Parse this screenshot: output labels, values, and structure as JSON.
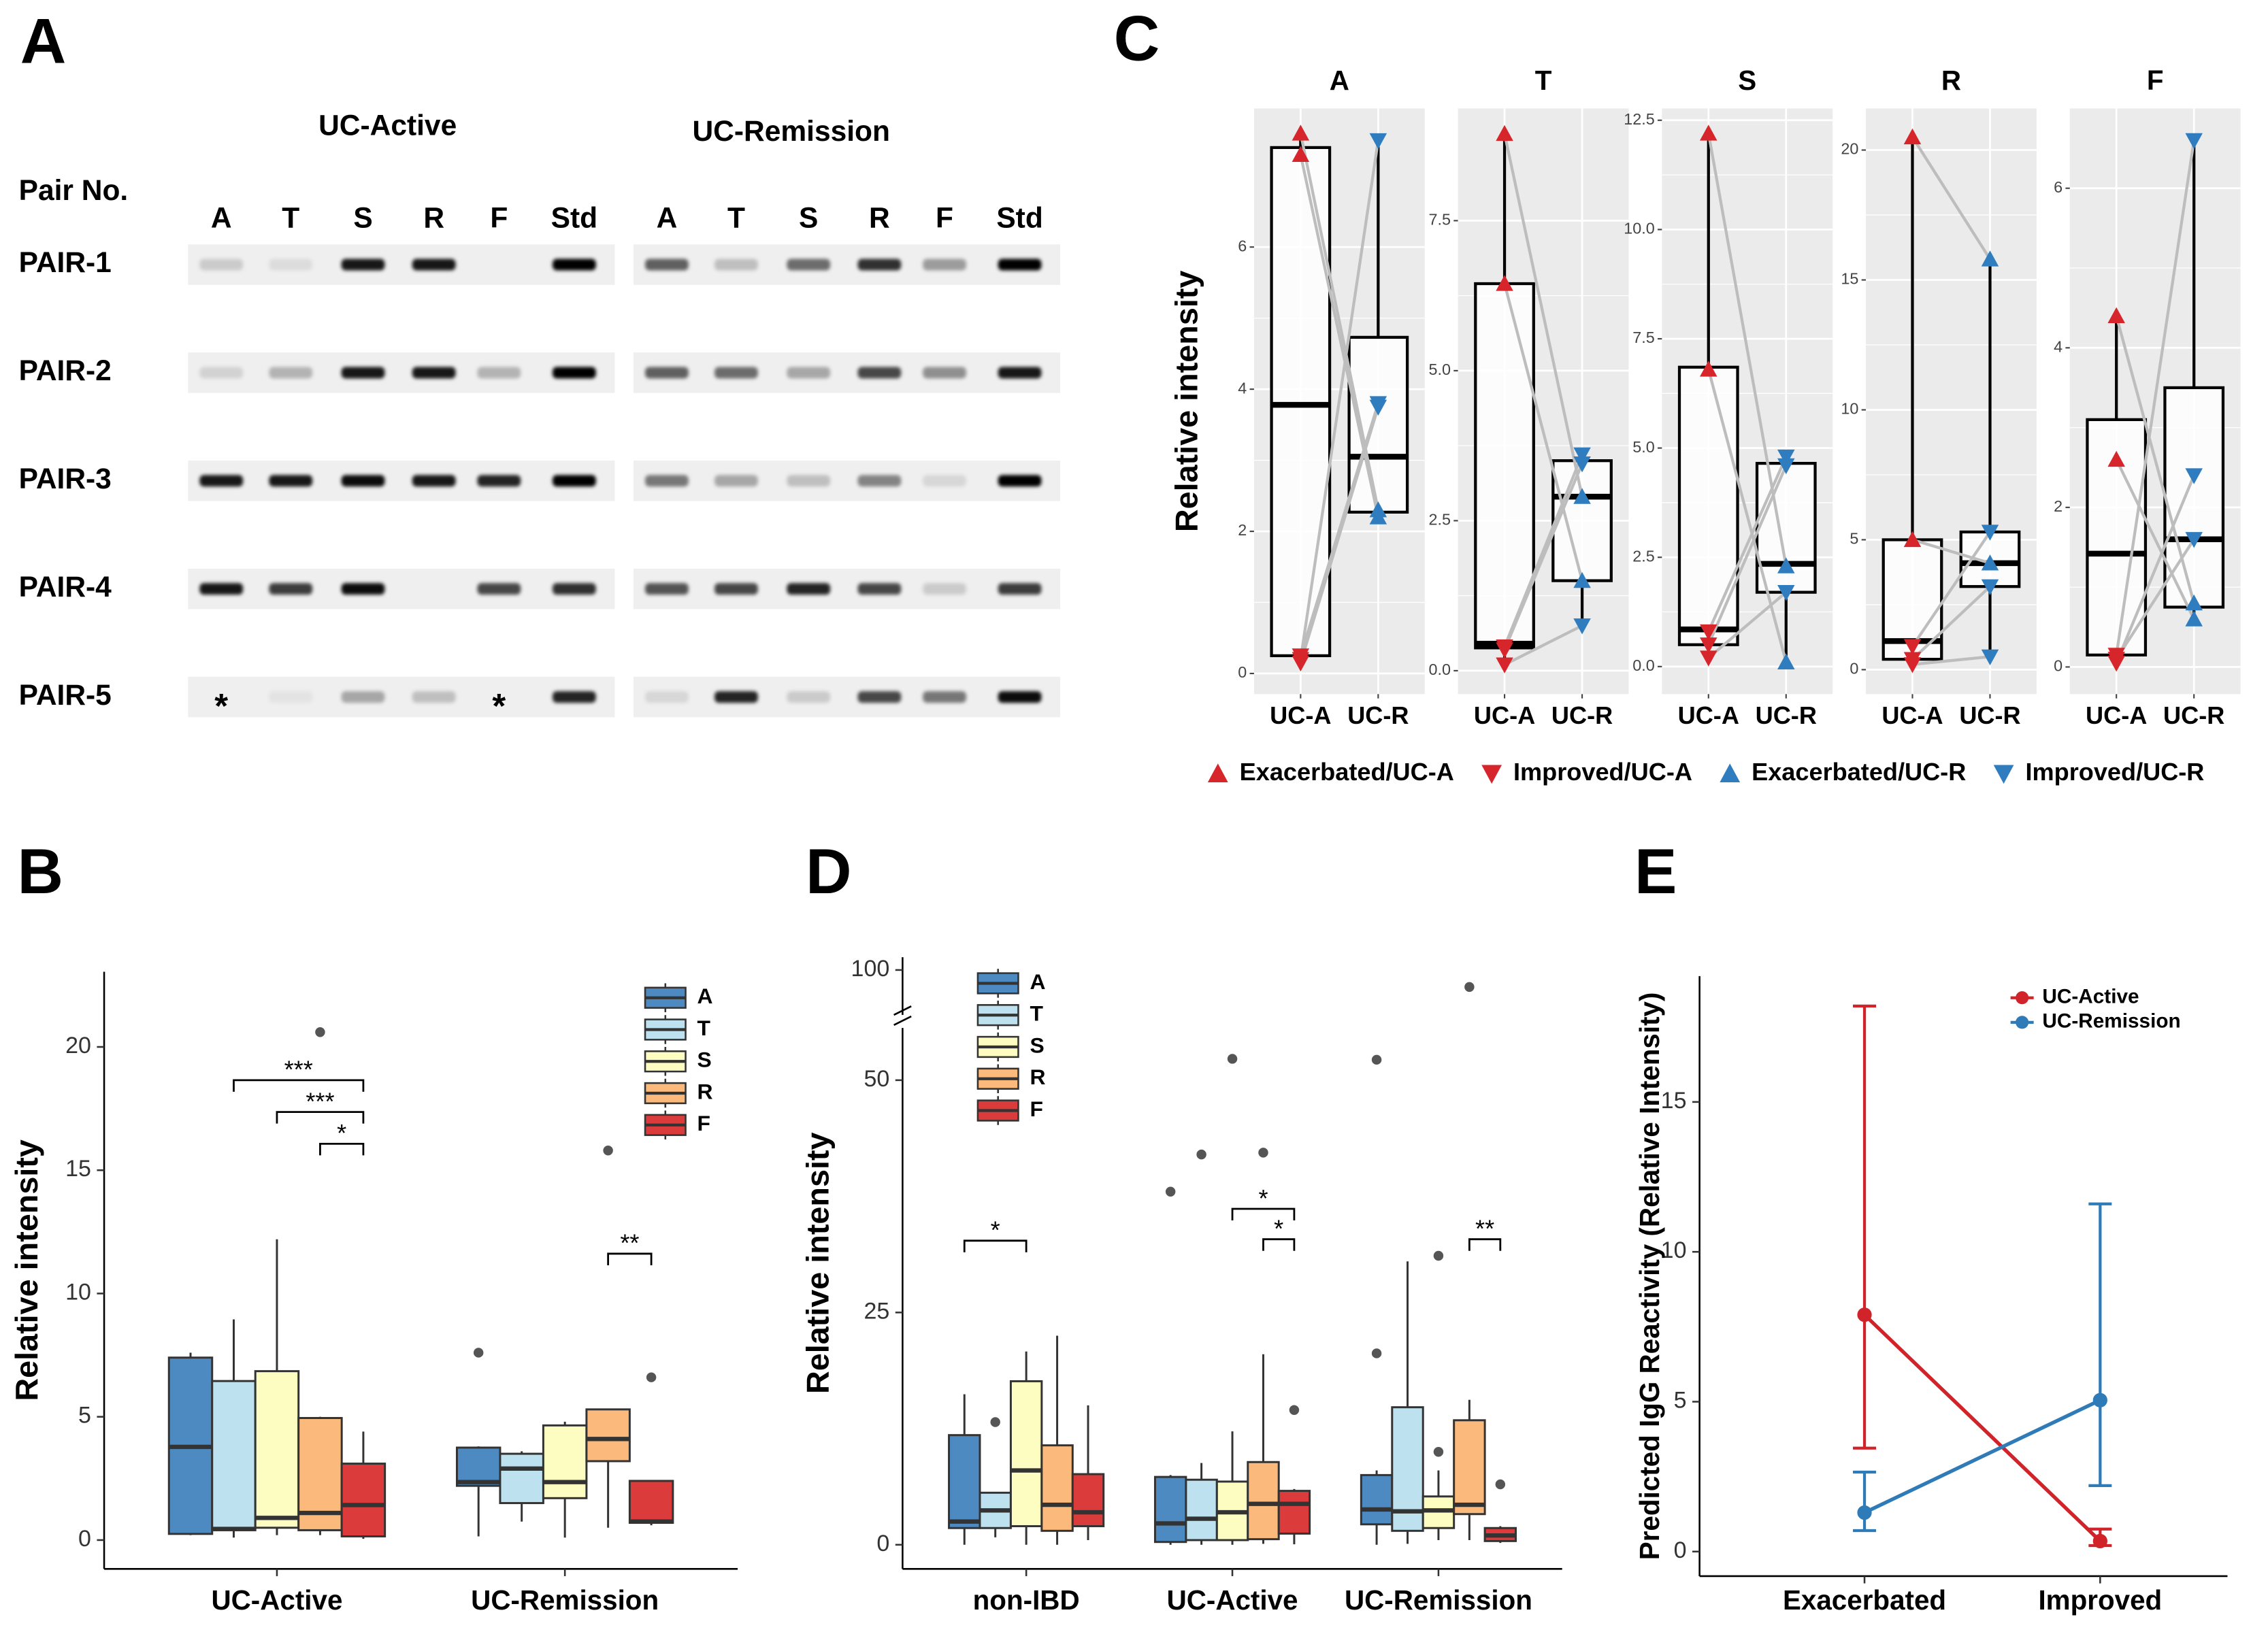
{
  "blot": {
    "panel": "A",
    "pair_label": "Pair No.",
    "groups": [
      "UC-Active",
      "UC-Remission"
    ],
    "lanes": [
      "A",
      "T",
      "S",
      "R",
      "F",
      "Std"
    ],
    "rows": [
      {
        "label": "PAIR-1",
        "intensity": [
          [
            0.15,
            0.08,
            0.9,
            0.9,
            0,
            1
          ],
          [
            0.6,
            0.2,
            0.55,
            0.8,
            0.35,
            1
          ]
        ]
      },
      {
        "label": "PAIR-2",
        "intensity": [
          [
            0.12,
            0.25,
            0.9,
            0.9,
            0.25,
            1
          ],
          [
            0.6,
            0.55,
            0.3,
            0.7,
            0.4,
            0.9
          ]
        ]
      },
      {
        "label": "PAIR-3",
        "intensity": [
          [
            0.9,
            0.9,
            0.95,
            0.9,
            0.85,
            1
          ],
          [
            0.5,
            0.3,
            0.2,
            0.45,
            0.1,
            1
          ]
        ]
      },
      {
        "label": "PAIR-4",
        "intensity": [
          [
            0.9,
            0.75,
            0.95,
            0,
            0.7,
            0.8
          ],
          [
            0.65,
            0.7,
            0.85,
            0.7,
            0.15,
            0.75
          ]
        ]
      },
      {
        "label": "PAIR-5",
        "intensity": [
          [
            0,
            0.05,
            0.3,
            0.2,
            0,
            0.85
          ],
          [
            0.1,
            0.85,
            0.15,
            0.7,
            0.5,
            0.95
          ]
        ]
      }
    ],
    "marks": [
      {
        "label": "*",
        "row": 4,
        "group": 0,
        "lane": 0
      },
      {
        "label": "*",
        "row": 4,
        "group": 0,
        "lane": 4
      }
    ]
  },
  "chart_data": [
    {
      "type": "box",
      "panel": "B",
      "ylabel": "Relative intensity",
      "categories": [
        "UC-Active",
        "UC-Remission"
      ],
      "series": [
        {
          "name": "A",
          "color": "#4d8ac2",
          "boxes": [
            [
              0.2,
              0.25,
              3.78,
              7.4,
              7.6
            ],
            [
              0.15,
              2.2,
              2.35,
              3.75,
              3.8
            ]
          ],
          "outliers": [
            [],
            [
              7.6
            ]
          ]
        },
        {
          "name": "T",
          "color": "#bde1ee",
          "boxes": [
            [
              0.1,
              0.4,
              0.45,
              6.45,
              8.95
            ],
            [
              0.75,
              1.5,
              2.9,
              3.5,
              3.6
            ]
          ],
          "outliers": [
            [],
            []
          ]
        },
        {
          "name": "S",
          "color": "#fefdc1",
          "boxes": [
            [
              0.2,
              0.5,
              0.9,
              6.85,
              12.2
            ],
            [
              0.1,
              1.7,
              2.35,
              4.65,
              4.8
            ]
          ],
          "outliers": [
            [],
            []
          ]
        },
        {
          "name": "R",
          "color": "#fbb97b",
          "boxes": [
            [
              0.2,
              0.4,
              1.1,
              4.95,
              5.0
            ],
            [
              0.5,
              3.2,
              4.1,
              5.3,
              5.3
            ]
          ],
          "outliers": [
            [
              20.6
            ],
            [
              15.8
            ]
          ]
        },
        {
          "name": "F",
          "color": "#dc3b3b",
          "boxes": [
            [
              0.05,
              0.15,
              1.42,
              3.1,
              4.4
            ],
            [
              0.6,
              0.7,
              0.75,
              2.4,
              2.4
            ]
          ],
          "outliers": [
            [],
            [
              6.6
            ]
          ]
        }
      ],
      "ylim": [
        -1.17,
        23.05
      ],
      "yticks": [
        0,
        5,
        10,
        15,
        20
      ],
      "legend": "top-right",
      "annotations": [
        {
          "label": "***",
          "category": 0,
          "from": 1,
          "to": 4
        },
        {
          "label": "***",
          "category": 0,
          "from": 2,
          "to": 4
        },
        {
          "label": "*",
          "category": 0,
          "from": 3,
          "to": 4
        },
        {
          "label": "**",
          "category": 1,
          "from": 3,
          "to": 4
        }
      ]
    },
    {
      "type": "facet-box",
      "panel": "C",
      "ylabel": "Relative intensity",
      "categories": [
        "UC-A",
        "UC-R"
      ],
      "series": [
        {
          "name": "Exacerbated/UC-A",
          "color": "#d7262b",
          "marker": "triangle-up"
        },
        {
          "name": "Improved/UC-A",
          "color": "#d7262b",
          "marker": "triangle-down"
        },
        {
          "name": "Exacerbated/UC-R",
          "color": "#2f7dbf",
          "marker": "triangle-up"
        },
        {
          "name": "Improved/UC-R",
          "color": "#2f7dbf",
          "marker": "triangle-down"
        }
      ],
      "facets": [
        {
          "title": "A",
          "ylim": [
            -0.29,
            7.95
          ],
          "yticks": [
            0,
            2,
            4,
            6
          ],
          "boxes": [
            [
              0.15,
              0.25,
              3.78,
              7.4,
              7.6
            ],
            [
              2.2,
              2.27,
              3.05,
              4.73,
              7.5
            ]
          ],
          "points": [
            [
              7.6,
              7.3,
              null,
              null,
              null
            ],
            [
              null,
              null,
              0.2,
              0.15,
              0.25
            ],
            [
              2.3,
              2.2,
              null,
              null,
              null
            ],
            [
              null,
              null,
              7.5,
              3.75,
              3.8
            ]
          ]
        },
        {
          "title": "T",
          "ylim": [
            -0.39,
            9.37
          ],
          "yticks": [
            {
              "value": 0,
              "label": "0.0"
            },
            2.5,
            {
              "value": 5,
              "label": "5.0"
            },
            7.5
          ],
          "boxes": [
            [
              0.1,
              0.38,
              0.45,
              6.45,
              8.95
            ],
            [
              0.75,
              1.5,
              2.9,
              3.5,
              3.6
            ]
          ],
          "points": [
            [
              8.95,
              6.45,
              null,
              null,
              null
            ],
            [
              null,
              null,
              0.4,
              0.35,
              0.1
            ],
            [
              2.9,
              1.5,
              null,
              null,
              null
            ],
            [
              null,
              null,
              3.6,
              3.45,
              0.75
            ]
          ]
        },
        {
          "title": "S",
          "ylim": [
            -0.63,
            12.77
          ],
          "yticks": [
            {
              "value": 0,
              "label": "0.0"
            },
            2.5,
            {
              "value": 5,
              "label": "5.0"
            },
            7.5,
            {
              "value": 10,
              "label": "10.0"
            },
            12.5
          ],
          "boxes": [
            [
              0.2,
              0.5,
              0.85,
              6.85,
              12.2
            ],
            [
              0.1,
              1.7,
              2.35,
              4.65,
              4.8
            ]
          ],
          "points": [
            [
              12.2,
              6.8,
              null,
              null,
              null
            ],
            [
              null,
              null,
              0.8,
              0.5,
              0.2
            ],
            [
              2.3,
              0.1,
              null,
              null,
              null
            ],
            [
              null,
              null,
              4.8,
              4.6,
              1.7
            ]
          ]
        },
        {
          "title": "R",
          "ylim": [
            -0.94,
            21.6
          ],
          "yticks": [
            0,
            5,
            10,
            15,
            20
          ],
          "boxes": [
            [
              0.2,
              0.4,
              1.1,
              5,
              20.5
            ],
            [
              0.5,
              3.2,
              4.1,
              5.3,
              15.8
            ]
          ],
          "points": [
            [
              20.5,
              5,
              null,
              null,
              null
            ],
            [
              null,
              null,
              0.9,
              0.4,
              0.2
            ],
            [
              15.8,
              4.1,
              null,
              null,
              null
            ],
            [
              null,
              null,
              5.3,
              3.2,
              0.5
            ]
          ]
        },
        {
          "title": "F",
          "ylim": [
            -0.34,
            7.0
          ],
          "yticks": [
            0,
            2,
            4,
            6
          ],
          "boxes": [
            [
              0.05,
              0.15,
              1.42,
              3.1,
              4.4
            ],
            [
              0.6,
              0.75,
              1.6,
              3.5,
              6.6
            ]
          ],
          "points": [
            [
              4.4,
              2.6,
              null,
              null,
              null
            ],
            [
              null,
              null,
              0.15,
              0.05,
              0.1
            ],
            [
              0.8,
              0.6,
              null,
              null,
              null
            ],
            [
              null,
              null,
              6.6,
              2.4,
              1.6
            ]
          ]
        }
      ],
      "legend": "bottom"
    },
    {
      "type": "box",
      "panel": "D",
      "ylabel": "Relative intensity",
      "categories": [
        "non-IBD",
        "UC-Active",
        "UC-Remission"
      ],
      "series": [
        {
          "name": "A",
          "color": "#4d8ac2",
          "boxes": [
            [
              0,
              1.8,
              2.5,
              11.8,
              16.2
            ],
            [
              0,
              0.3,
              2.3,
              7.3,
              7.5
            ],
            [
              0,
              2.2,
              3.8,
              7.5,
              8
            ]
          ],
          "outliers": [
            [],
            [
              38
            ],
            [
              20.6,
              52.2
            ]
          ]
        },
        {
          "name": "T",
          "color": "#bde1ee",
          "boxes": [
            [
              0.8,
              1.8,
              3.7,
              5.6,
              5.6
            ],
            [
              0,
              0.5,
              2.8,
              7.0,
              8.8
            ],
            [
              0.1,
              1.5,
              3.6,
              14.8,
              30.5
            ]
          ],
          "outliers": [
            [
              13.2
            ],
            [
              42
            ],
            []
          ]
        },
        {
          "name": "S",
          "color": "#fefdc1",
          "boxes": [
            [
              0,
              2,
              8,
              17.6,
              20.8
            ],
            [
              0,
              0.5,
              3.5,
              6.8,
              12.2
            ],
            [
              0.5,
              1.8,
              3.7,
              5.2,
              8
            ]
          ],
          "outliers": [
            [],
            [
              52.3
            ],
            [
              10,
              31.1
            ]
          ]
        },
        {
          "name": "R",
          "color": "#fbb97b",
          "boxes": [
            [
              0,
              1.5,
              4.3,
              10.7,
              22.5
            ],
            [
              0.1,
              0.6,
              4.4,
              8.9,
              20.5
            ],
            [
              0.5,
              3.3,
              4.3,
              13.4,
              15.6
            ]
          ],
          "outliers": [
            [],
            [
              42.2
            ],
            [
              88
            ]
          ]
        },
        {
          "name": "F",
          "color": "#dc3b3b",
          "boxes": [
            [
              0.5,
              2,
              3.5,
              7.6,
              15
            ],
            [
              0.05,
              1.2,
              4.4,
              5.8,
              6
            ],
            [
              0.2,
              0.4,
              1,
              1.8,
              2
            ]
          ],
          "outliers": [
            [],
            [
              14.5
            ],
            [
              6.5
            ]
          ]
        }
      ],
      "ylim": [
        -2.6,
        109
      ],
      "yticks": [
        0,
        25,
        50,
        100
      ],
      "axis_break": true,
      "legend": "top-left",
      "annotations": [
        {
          "label": "*",
          "category": 0,
          "from": 0,
          "to": 2
        },
        {
          "label": "*",
          "category": 1,
          "from": 2,
          "to": 4
        },
        {
          "label": "*",
          "category": 1,
          "from": 3,
          "to": 4
        },
        {
          "label": "**",
          "category": 2,
          "from": 3,
          "to": 4
        }
      ]
    },
    {
      "type": "line",
      "panel": "E",
      "ylabel": "Predicted IgG Reactivity (Relative Intensity)",
      "categories": [
        "Exacerbated",
        "Improved"
      ],
      "series": [
        {
          "name": "UC-Active",
          "color": "#d0232a",
          "values": [
            7.9,
            0.35
          ],
          "lower": [
            3.45,
            0.2
          ],
          "upper": [
            18.2,
            0.75
          ]
        },
        {
          "name": "UC-Remission",
          "color": "#2e7bb7",
          "values": [
            1.3,
            5.05
          ],
          "lower": [
            0.7,
            2.2
          ],
          "upper": [
            2.65,
            11.6
          ]
        }
      ],
      "ylim": [
        -0.82,
        19.2
      ],
      "yticks": [
        0,
        5,
        10,
        15
      ],
      "legend": "top-right"
    }
  ]
}
